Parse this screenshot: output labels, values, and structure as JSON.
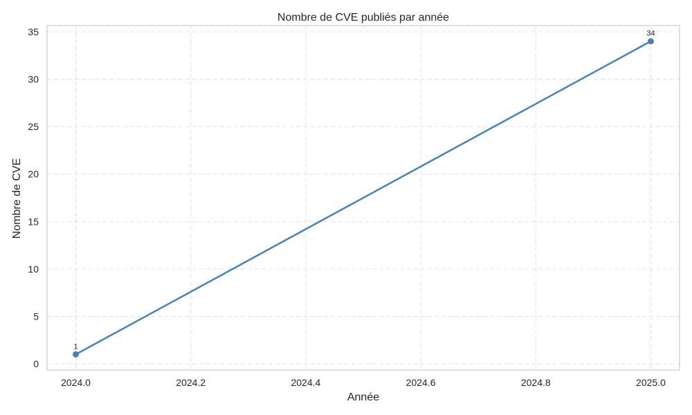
{
  "chart_data": {
    "type": "line",
    "title": "Nombre de CVE publiés par année",
    "xlabel": "Année",
    "ylabel": "Nombre de CVE",
    "x": [
      2024,
      2025
    ],
    "series": [
      {
        "values": [
          1,
          34
        ],
        "data_labels": [
          "1",
          "34"
        ],
        "color": "#4682b4"
      }
    ],
    "xlim": [
      2023.95,
      2025.05
    ],
    "ylim": [
      -0.65,
      35.65
    ],
    "x_ticks": [
      2024.0,
      2024.2,
      2024.4,
      2024.6,
      2024.8,
      2025.0
    ],
    "x_tick_labels": [
      "2024.0",
      "2024.2",
      "2024.4",
      "2024.6",
      "2024.8",
      "2025.0"
    ],
    "y_ticks": [
      0,
      5,
      10,
      15,
      20,
      25,
      30,
      35
    ],
    "y_tick_labels": [
      "0",
      "5",
      "10",
      "15",
      "20",
      "25",
      "30",
      "35"
    ],
    "grid": true,
    "grid_style": "dashed",
    "markers": true,
    "legend": "none"
  }
}
